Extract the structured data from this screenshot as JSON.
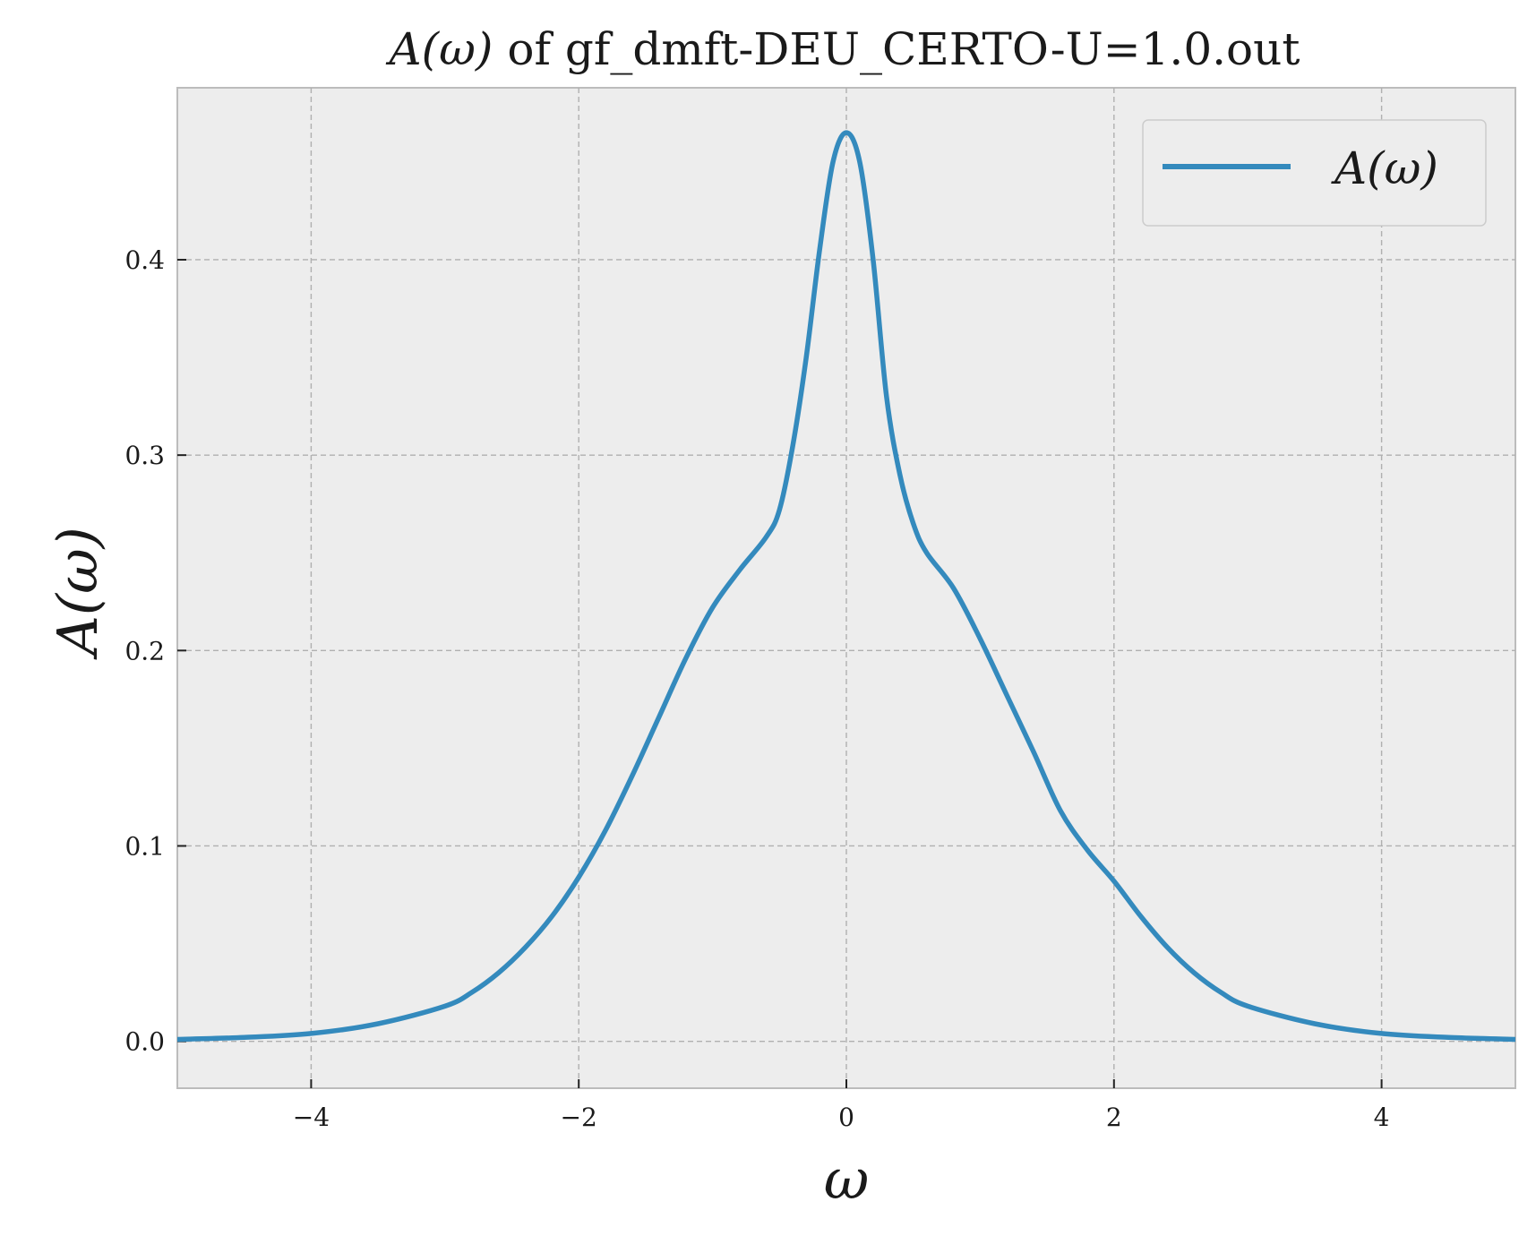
{
  "chart_data": {
    "type": "line",
    "title_main": "A(ω)",
    "title_rest": " of gf_dmft-DEU_CERTO-U=1.0.out",
    "xlabel": "ω",
    "ylabel": "A(ω)",
    "xlim": [
      -5,
      5
    ],
    "ylim": [
      -0.024,
      0.488
    ],
    "xticks": [
      -4,
      -2,
      0,
      2,
      4
    ],
    "xtick_labels": [
      "−4",
      "−2",
      "0",
      "2",
      "4"
    ],
    "yticks": [
      0.0,
      0.1,
      0.2,
      0.3,
      0.4
    ],
    "ytick_labels": [
      "0.0",
      "0.1",
      "0.2",
      "0.3",
      "0.4"
    ],
    "grid": true,
    "legend_position": "top-right",
    "series": [
      {
        "name": "A(ω)",
        "color": "#348abd",
        "x": [
          -5.0,
          -4.5,
          -4.0,
          -3.5,
          -3.0,
          -2.8,
          -2.6,
          -2.4,
          -2.2,
          -2.0,
          -1.8,
          -1.6,
          -1.4,
          -1.2,
          -1.0,
          -0.8,
          -0.6,
          -0.5,
          -0.4,
          -0.3,
          -0.2,
          -0.1,
          0.0,
          0.1,
          0.2,
          0.3,
          0.4,
          0.5,
          0.6,
          0.8,
          1.0,
          1.2,
          1.4,
          1.6,
          1.8,
          2.0,
          2.2,
          2.4,
          2.6,
          2.8,
          3.0,
          3.5,
          4.0,
          4.5,
          5.0
        ],
        "y": [
          0.001,
          0.002,
          0.004,
          0.009,
          0.018,
          0.025,
          0.035,
          0.048,
          0.064,
          0.084,
          0.108,
          0.136,
          0.166,
          0.196,
          0.222,
          0.241,
          0.258,
          0.272,
          0.305,
          0.35,
          0.405,
          0.45,
          0.465,
          0.45,
          0.4,
          0.33,
          0.29,
          0.265,
          0.25,
          0.232,
          0.206,
          0.177,
          0.148,
          0.118,
          0.098,
          0.082,
          0.064,
          0.048,
          0.035,
          0.025,
          0.018,
          0.009,
          0.004,
          0.002,
          0.001
        ]
      }
    ]
  }
}
